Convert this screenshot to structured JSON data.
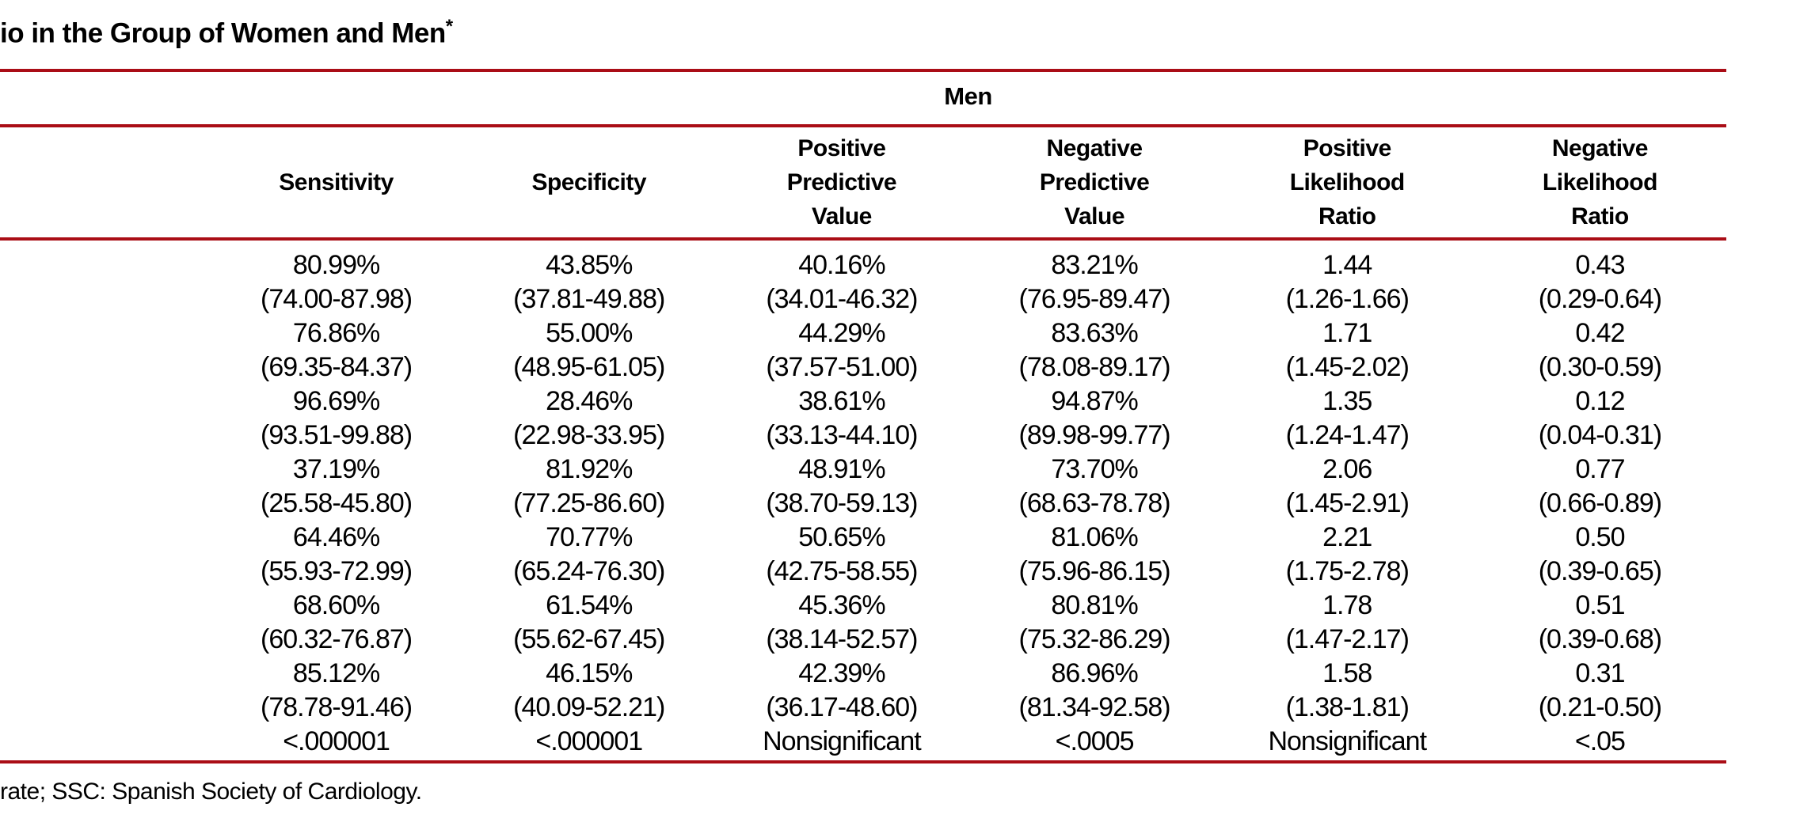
{
  "page": {
    "background": "#ffffff",
    "accent_red": "#AA0D16",
    "text_color": "#000000"
  },
  "title": {
    "visible_text": "io in the Group of Women and Men",
    "asterisk": "*"
  },
  "table": {
    "group_header": "Men",
    "columns": [
      {
        "label": "Sensitivity"
      },
      {
        "label": "Specificity"
      },
      {
        "label": "Positive\nPredictive\nValue"
      },
      {
        "label": "Negative\nPredictive\nValue"
      },
      {
        "label": "Positive\nLikelihood\nRatio"
      },
      {
        "label": "Negative\nLikelihood\nRatio"
      }
    ],
    "rows": [
      {
        "values": [
          "80.99%",
          "43.85%",
          "40.16%",
          "83.21%",
          "1.44",
          "0.43"
        ],
        "ci": [
          "(74.00-87.98)",
          "(37.81-49.88)",
          "(34.01-46.32)",
          "(76.95-89.47)",
          "(1.26-1.66)",
          "(0.29-0.64)"
        ]
      },
      {
        "values": [
          "76.86%",
          "55.00%",
          "44.29%",
          "83.63%",
          "1.71",
          "0.42"
        ],
        "ci": [
          "(69.35-84.37)",
          "(48.95-61.05)",
          "(37.57-51.00)",
          "(78.08-89.17)",
          "(1.45-2.02)",
          "(0.30-0.59)"
        ]
      },
      {
        "values": [
          "96.69%",
          "28.46%",
          "38.61%",
          "94.87%",
          "1.35",
          "0.12"
        ],
        "ci": [
          "(93.51-99.88)",
          "(22.98-33.95)",
          "(33.13-44.10)",
          "(89.98-99.77)",
          "(1.24-1.47)",
          "(0.04-0.31)"
        ]
      },
      {
        "values": [
          "37.19%",
          "81.92%",
          "48.91%",
          "73.70%",
          "2.06",
          "0.77"
        ],
        "ci": [
          "(25.58-45.80)",
          "(77.25-86.60)",
          "(38.70-59.13)",
          "(68.63-78.78)",
          "(1.45-2.91)",
          "(0.66-0.89)"
        ]
      },
      {
        "values": [
          "64.46%",
          "70.77%",
          "50.65%",
          "81.06%",
          "2.21",
          "0.50"
        ],
        "ci": [
          "(55.93-72.99)",
          "(65.24-76.30)",
          "(42.75-58.55)",
          "(75.96-86.15)",
          "(1.75-2.78)",
          "(0.39-0.65)"
        ]
      },
      {
        "values": [
          "68.60%",
          "61.54%",
          "45.36%",
          "80.81%",
          "1.78",
          "0.51"
        ],
        "ci": [
          "(60.32-76.87)",
          "(55.62-67.45)",
          "(38.14-52.57)",
          "(75.32-86.29)",
          "(1.47-2.17)",
          "(0.39-0.68)"
        ]
      },
      {
        "values": [
          "85.12%",
          "46.15%",
          "42.39%",
          "86.96%",
          "1.58",
          "0.31"
        ],
        "ci": [
          "(78.78-91.46)",
          "(40.09-52.21)",
          "(36.17-48.60)",
          "(81.34-92.58)",
          "(1.38-1.81)",
          "(0.21-0.50)"
        ]
      }
    ],
    "p_row": [
      "<.000001",
      "<.000001",
      "Nonsignificant",
      "<.0005",
      "Nonsignificant",
      "<.05"
    ]
  },
  "footnote": {
    "visible_text": "rate; SSC: Spanish Society of Cardiology."
  }
}
